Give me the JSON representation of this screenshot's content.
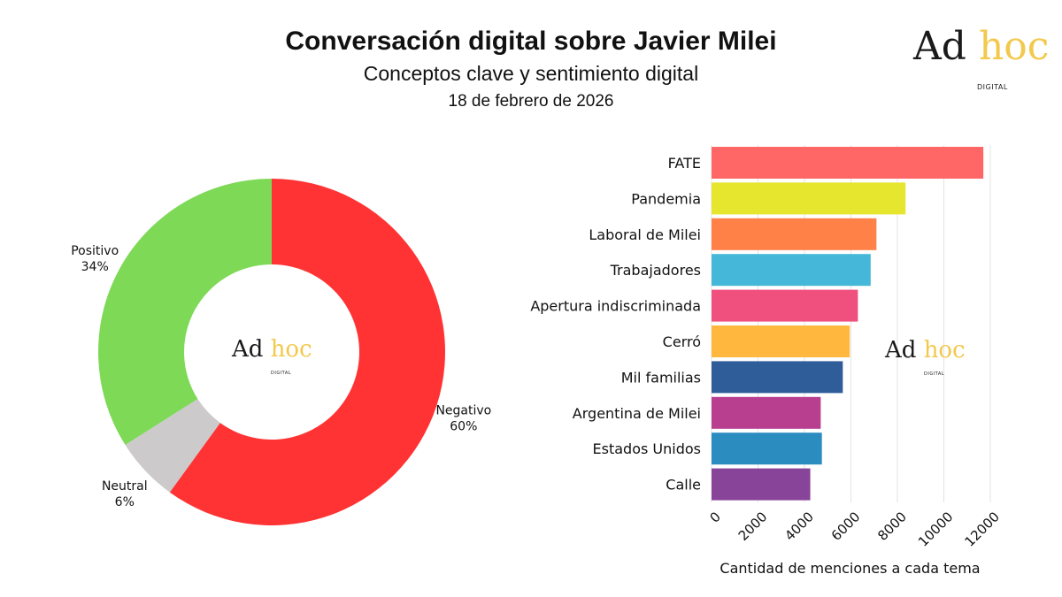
{
  "header": {
    "title": "Conversación digital sobre Javier Milei",
    "subtitle": "Conceptos clave y sentimiento digital",
    "date": "18 de febrero de 2026"
  },
  "brand": {
    "name_part1": "Ad",
    "name_part2": "hoc",
    "tagline": "DIGITAL"
  },
  "colors": {
    "brand_gold": "#f2c94c",
    "grid": "#e3e3e3"
  },
  "chart_data": [
    {
      "type": "pie",
      "style": "donut",
      "slices": [
        {
          "label": "Negativo",
          "value": 60,
          "display": "60%",
          "color": "#ff3333"
        },
        {
          "label": "Neutral",
          "value": 6,
          "display": "6%",
          "color": "#cccaca"
        },
        {
          "label": "Positivo",
          "value": 34,
          "display": "34%",
          "color": "#7ed957"
        }
      ]
    },
    {
      "type": "bar",
      "orientation": "horizontal",
      "categories": [
        "FATE",
        "Pandemia",
        "Laboral de Milei",
        "Trabajadores",
        "Apertura indiscriminada",
        "Cerró",
        "Mil familias",
        "Argentina de Milei",
        "Estados Unidos",
        "Calle"
      ],
      "values": [
        11700,
        8350,
        7100,
        6850,
        6300,
        5950,
        5650,
        4700,
        4750,
        4250
      ],
      "colors": [
        "#ff6666",
        "#e6e62e",
        "#ff8147",
        "#45b8d9",
        "#f0507e",
        "#ffb83d",
        "#2e5d99",
        "#b83f8f",
        "#2b8cbf",
        "#884499"
      ],
      "xlabel": "Cantidad de menciones a cada tema",
      "xlim": [
        0,
        12000
      ],
      "xticks": [
        0,
        2000,
        4000,
        6000,
        8000,
        10000,
        12000
      ],
      "grid": true
    }
  ]
}
